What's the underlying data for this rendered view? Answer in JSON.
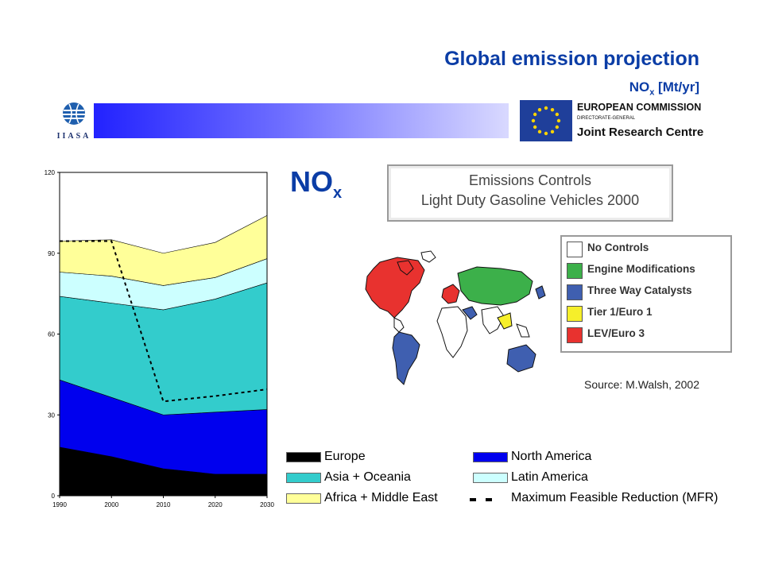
{
  "header": {
    "title": "Global emission projection",
    "subtitle_main": "NO",
    "subtitle_sub": "x",
    "subtitle_unit": " [Mt/yr]"
  },
  "logos": {
    "iiasa_text": "IIASA",
    "ec_line1": "EUROPEAN COMMISSION",
    "ec_line2": "DIRECTORATE-GENERAL",
    "ec_line3": "Joint Research Centre"
  },
  "nox_label": {
    "main": "NO",
    "sub": "x"
  },
  "map": {
    "title_line1": "Emissions Controls",
    "title_line2": "Light Duty Gasoline Vehicles 2000",
    "legend": [
      {
        "label": "No Controls",
        "color": "#ffffff"
      },
      {
        "label": "Engine Modifications",
        "color": "#3cb04a"
      },
      {
        "label": "Three Way Catalysts",
        "color": "#3f5fb0"
      },
      {
        "label": "Tier 1/Euro 1",
        "color": "#f6ef2a"
      },
      {
        "label": "LEV/Euro 3",
        "color": "#e8322f"
      }
    ],
    "source": "Source: M.Walsh, 2002"
  },
  "chart_data": {
    "type": "area",
    "stacked": true,
    "x": [
      1990,
      2000,
      2010,
      2020,
      2030
    ],
    "x_ticks": [
      "1990",
      "2000",
      "2010",
      "2020",
      "2030"
    ],
    "ylim": [
      0,
      120
    ],
    "y_ticks": [
      "0",
      "30",
      "60",
      "90",
      "120"
    ],
    "series": [
      {
        "name": "Europe",
        "color": "#000000",
        "values": [
          18,
          14.5,
          10,
          8,
          8
        ]
      },
      {
        "name": "North America",
        "color": "#0000ee",
        "values": [
          25,
          22,
          20,
          23,
          24
        ]
      },
      {
        "name": "Asia + Oceania",
        "color": "#33cccc",
        "values": [
          31,
          35,
          39,
          42,
          47
        ]
      },
      {
        "name": "Latin America",
        "color": "#ccffff",
        "values": [
          9,
          10,
          9,
          8,
          9
        ]
      },
      {
        "name": "Africa + Middle East",
        "color": "#ffff99",
        "values": [
          11.5,
          13.5,
          12,
          13,
          16
        ]
      }
    ],
    "mfr": {
      "name": "Maximum Feasible Reduction (MFR)",
      "values": [
        94.5,
        94.5,
        35,
        37,
        39.5
      ]
    },
    "legend": [
      {
        "label": "Europe",
        "color": "#000000"
      },
      {
        "label": "North America",
        "color": "#0000ee"
      },
      {
        "label": "Asia + Oceania",
        "color": "#33cccc"
      },
      {
        "label": "Latin America",
        "color": "#ccffff"
      },
      {
        "label": "Africa + Middle East",
        "color": "#ffff99"
      },
      {
        "label": "Maximum Feasible Reduction (MFR)",
        "color": "dashed"
      }
    ]
  }
}
